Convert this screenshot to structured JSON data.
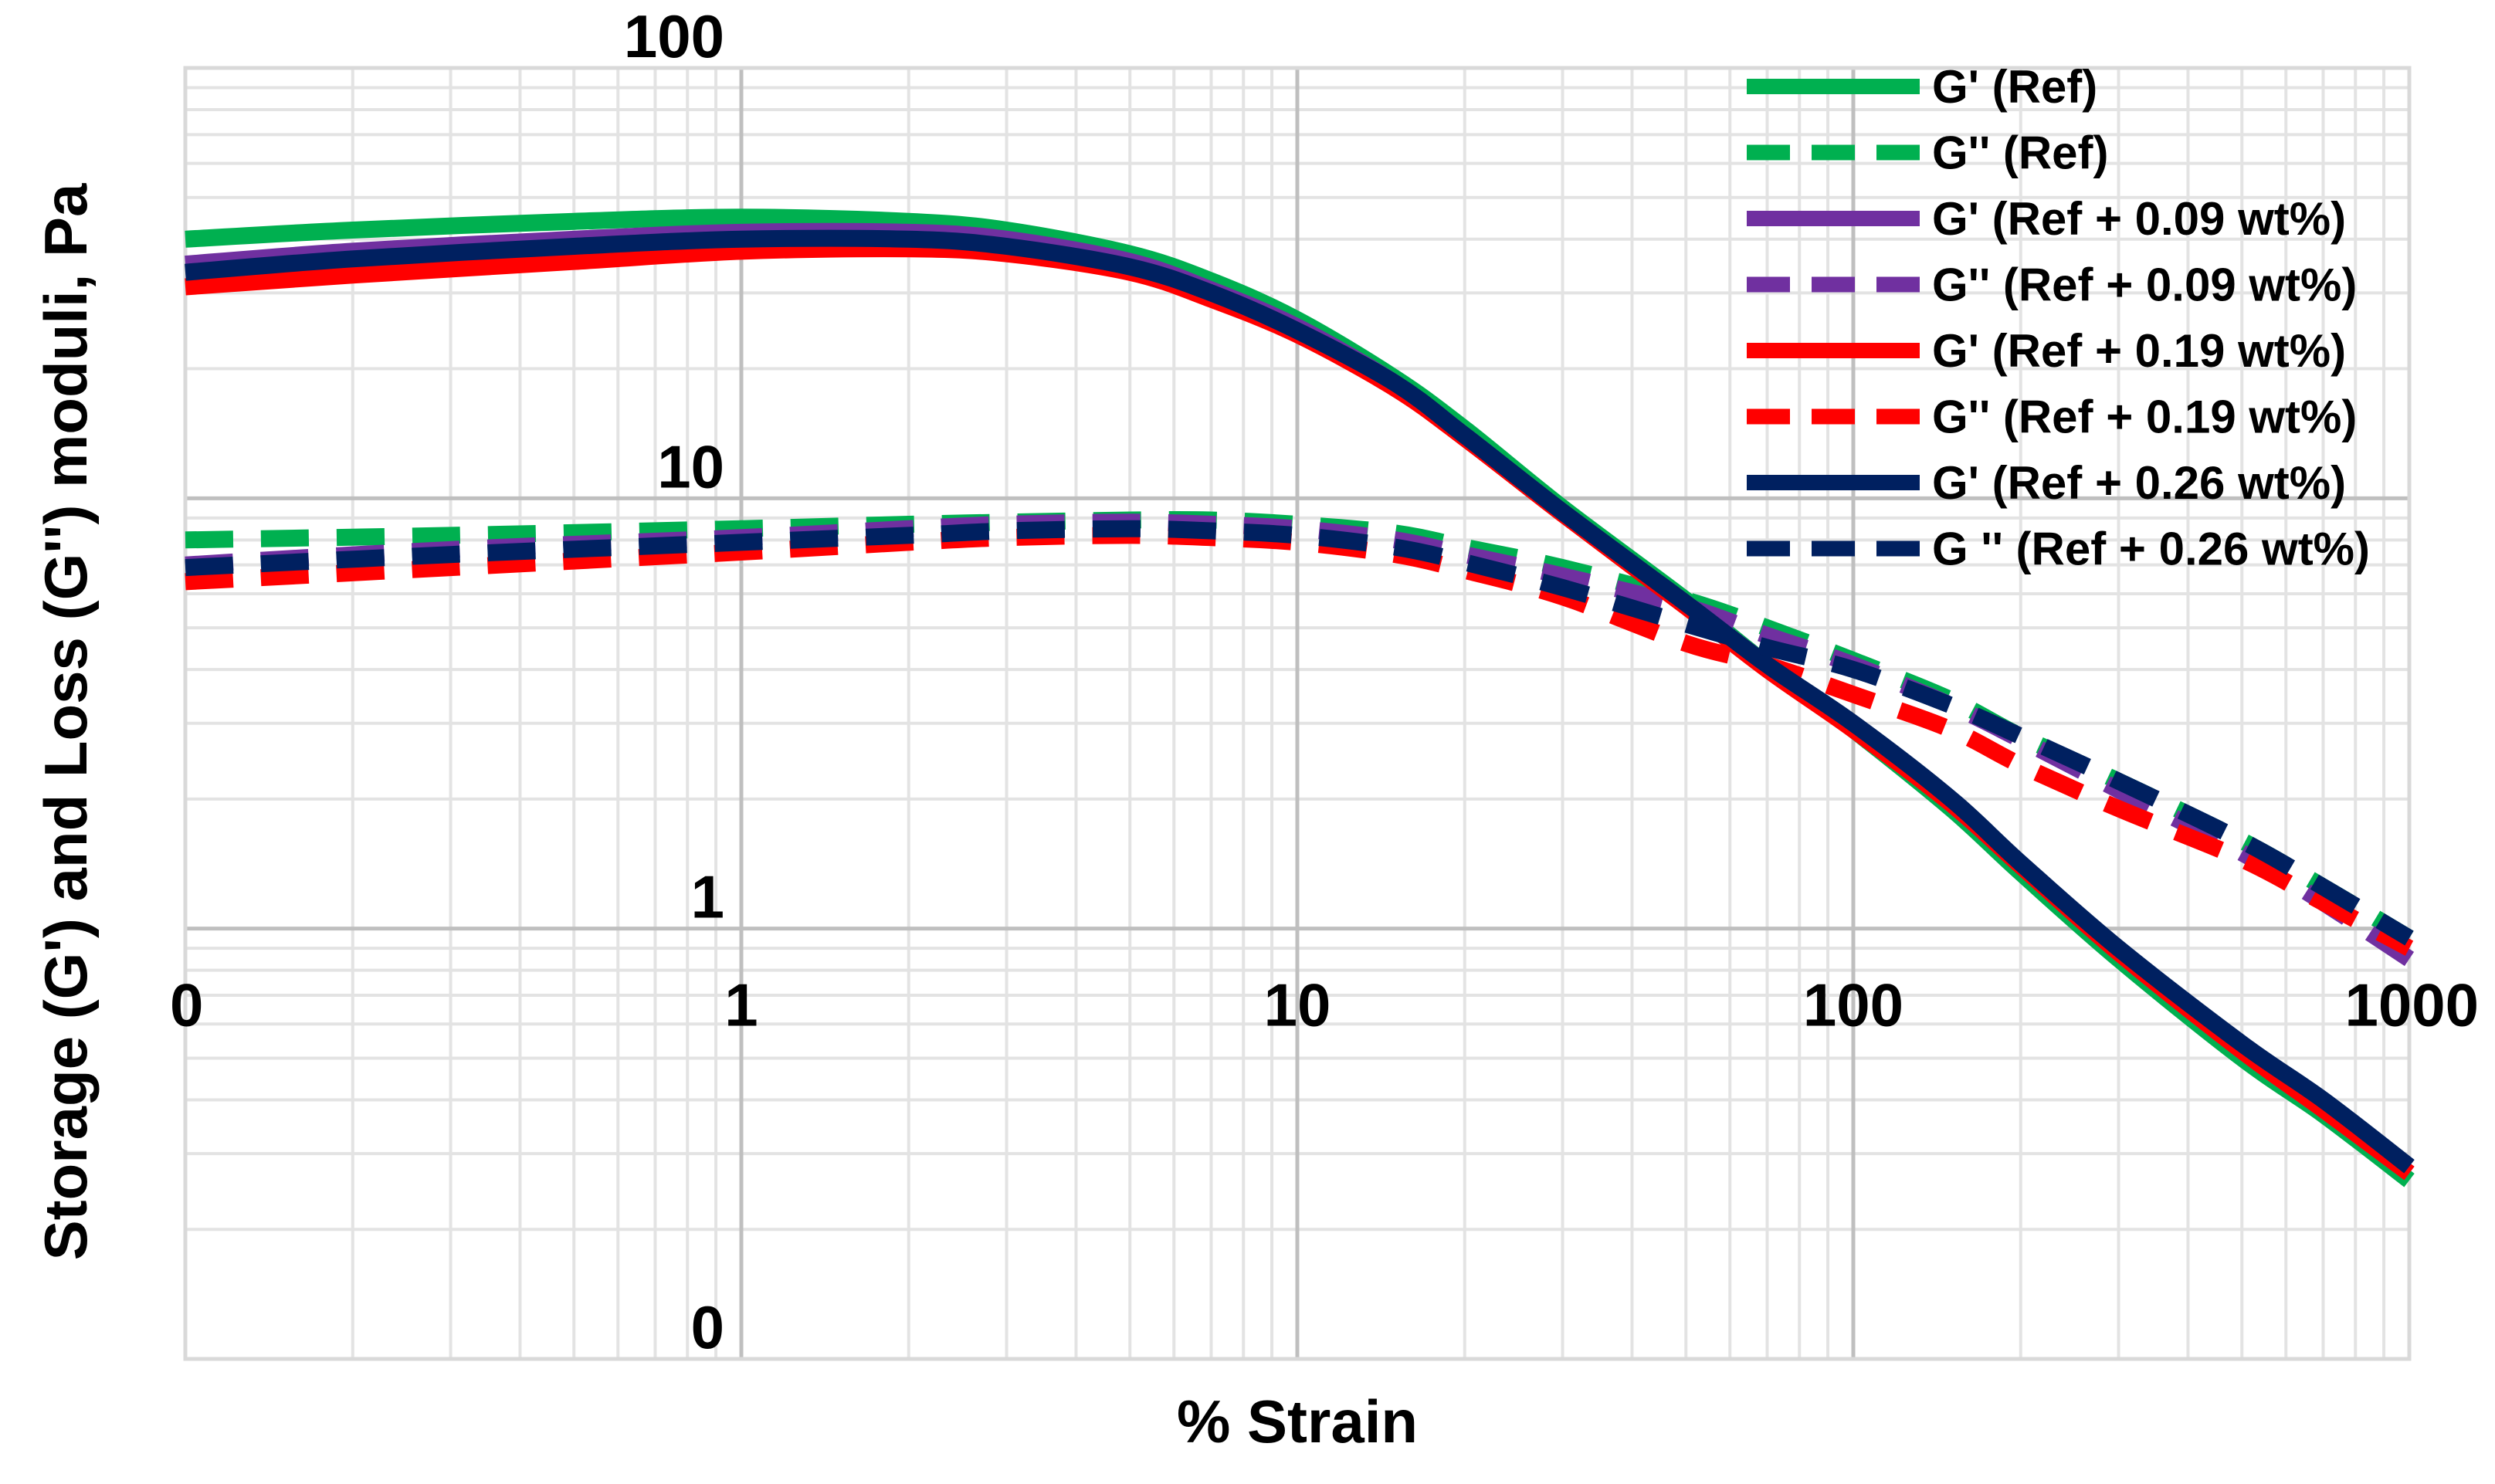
{
  "chart_data": {
    "type": "line",
    "xlabel": "% Strain",
    "ylabel": "Storage (G') and Loss (G'') moduli, Pa",
    "xscale": "log",
    "yscale": "log",
    "xlim": [
      0.1,
      1000
    ],
    "ylim": [
      0.1,
      100
    ],
    "x_tick_labels": [
      {
        "value": 0.1,
        "label": "0"
      },
      {
        "value": 1,
        "label": "1"
      },
      {
        "value": 10,
        "label": "10"
      },
      {
        "value": 100,
        "label": "100"
      },
      {
        "value": 1000,
        "label": "1000"
      }
    ],
    "y_tick_labels": [
      {
        "value": 100,
        "label": "100"
      },
      {
        "value": 10,
        "label": "10"
      },
      {
        "value": 1,
        "label": "1"
      },
      {
        "value": 0.1,
        "label": "0"
      }
    ],
    "grid": true,
    "legend_position": "top-right",
    "series": [
      {
        "name": "G' (Ref)",
        "color": "#00b050",
        "style": "solid",
        "x": [
          0.1,
          0.2,
          0.5,
          1,
          2,
          3,
          5,
          7,
          10,
          15,
          20,
          30,
          50,
          70,
          100,
          150,
          200,
          300,
          500,
          700,
          1000
        ],
        "y": [
          40,
          42,
          44,
          45,
          44,
          42,
          37,
          32,
          26,
          19,
          14.5,
          9.5,
          5.8,
          4.1,
          2.9,
          1.9,
          1.35,
          0.85,
          0.5,
          0.37,
          0.26
        ]
      },
      {
        "name": "G'' (Ref)",
        "color": "#00b050",
        "style": "dashed",
        "x": [
          0.1,
          0.3,
          1,
          2,
          3,
          5,
          7,
          10,
          15,
          20,
          30,
          50,
          70,
          100,
          150,
          200,
          300,
          500,
          700,
          1000
        ],
        "y": [
          8,
          8.2,
          8.5,
          8.7,
          8.8,
          8.9,
          8.9,
          8.7,
          8.3,
          7.7,
          6.9,
          5.8,
          5.0,
          4.2,
          3.4,
          2.8,
          2.2,
          1.6,
          1.25,
          0.95
        ]
      },
      {
        "name": "G' (Ref + 0.09 wt%)",
        "color": "#7030a0",
        "style": "solid",
        "x": [
          0.1,
          0.2,
          0.5,
          1,
          2,
          3,
          5,
          7,
          10,
          15,
          20,
          30,
          50,
          70,
          100,
          150,
          200,
          300,
          500,
          700,
          1000
        ],
        "y": [
          35,
          37.5,
          40,
          41.5,
          41.5,
          40,
          35.5,
          30.5,
          25,
          18.5,
          14,
          9.3,
          5.7,
          4.1,
          2.95,
          1.95,
          1.4,
          0.88,
          0.52,
          0.38,
          0.27
        ]
      },
      {
        "name": "G'' (Ref + 0.09 wt%)",
        "color": "#7030a0",
        "style": "dashed",
        "x": [
          0.1,
          0.3,
          1,
          2,
          3,
          5,
          7,
          10,
          15,
          20,
          30,
          50,
          70,
          100,
          150,
          200,
          300,
          500,
          700,
          1000
        ],
        "y": [
          7,
          7.6,
          8.1,
          8.5,
          8.7,
          8.8,
          8.7,
          8.5,
          8.0,
          7.4,
          6.6,
          5.6,
          4.8,
          4.1,
          3.3,
          2.75,
          2.1,
          1.5,
          1.15,
          0.85
        ]
      },
      {
        "name": "G' (Ref + 0.19 wt%)",
        "color": "#ff0000",
        "style": "solid",
        "x": [
          0.1,
          0.2,
          0.5,
          1,
          2,
          3,
          5,
          7,
          10,
          15,
          20,
          30,
          50,
          70,
          100,
          150,
          200,
          300,
          500,
          700,
          1000
        ],
        "y": [
          31,
          33,
          35.5,
          37.5,
          38,
          37,
          33.5,
          29,
          24,
          18,
          13.8,
          9.2,
          5.6,
          4.0,
          2.9,
          1.95,
          1.4,
          0.88,
          0.52,
          0.38,
          0.27
        ]
      },
      {
        "name": "G'' (Ref + 0.19 wt%)",
        "color": "#ff0000",
        "style": "dashed",
        "x": [
          0.1,
          0.3,
          1,
          2,
          3,
          5,
          7,
          10,
          15,
          20,
          30,
          50,
          70,
          100,
          150,
          200,
          300,
          500,
          700,
          1000
        ],
        "y": [
          6.4,
          6.9,
          7.5,
          7.9,
          8.1,
          8.2,
          8.1,
          7.9,
          7.4,
          6.8,
          5.9,
          4.6,
          4.1,
          3.5,
          2.9,
          2.4,
          1.9,
          1.45,
          1.15,
          0.9
        ]
      },
      {
        "name": "G' (Ref + 0.26 wt%)",
        "color": "#002060",
        "style": "solid",
        "x": [
          0.1,
          0.2,
          0.5,
          1,
          2,
          3,
          5,
          7,
          10,
          15,
          20,
          30,
          50,
          70,
          100,
          150,
          200,
          300,
          500,
          700,
          1000
        ],
        "y": [
          33.5,
          36,
          38.5,
          40,
          40,
          38.5,
          34.5,
          30,
          24.5,
          18.5,
          14,
          9.3,
          5.7,
          4.1,
          3.0,
          2.0,
          1.42,
          0.9,
          0.54,
          0.4,
          0.28
        ]
      },
      {
        "name": "G '' (Ref + 0.26 wt%)",
        "color": "#002060",
        "style": "dashed",
        "x": [
          0.1,
          0.3,
          1,
          2,
          3,
          5,
          7,
          10,
          15,
          20,
          30,
          50,
          70,
          100,
          150,
          200,
          300,
          500,
          700,
          1000
        ],
        "y": [
          6.9,
          7.4,
          7.9,
          8.2,
          8.4,
          8.5,
          8.4,
          8.2,
          7.7,
          7.1,
          6.2,
          5.1,
          4.5,
          4.0,
          3.3,
          2.8,
          2.2,
          1.6,
          1.25,
          0.95
        ]
      }
    ]
  }
}
